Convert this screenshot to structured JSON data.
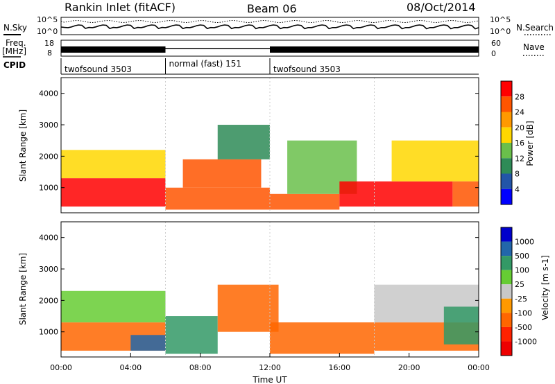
{
  "header": {
    "site": "Rankin Inlet (fitACF)",
    "beam": "Beam 06",
    "date": "08/Oct/2014"
  },
  "noise_panel": {
    "left_label": "N.Sky",
    "right_label": "N.Search",
    "left_ticks": [
      "10^5",
      "10^0"
    ],
    "right_ticks": [
      "10^5",
      "10^0"
    ]
  },
  "freq_panel": {
    "left_label_top": "Freq.",
    "left_label_unit": "[MHz]",
    "left_ticks": [
      "18",
      "8"
    ],
    "right_label": "Nave",
    "right_ticks": [
      "60",
      "0"
    ]
  },
  "cpid": {
    "label": "CPID",
    "segments": [
      {
        "label": "twofsound 3503",
        "start_hour": 0,
        "end_hour": 6
      },
      {
        "label": "normal (fast) 151",
        "start_hour": 6,
        "end_hour": 12
      },
      {
        "label": "twofsound 3503",
        "start_hour": 12,
        "end_hour": 24
      }
    ]
  },
  "colors": {
    "power": [
      "#0000ff",
      "#2255a8",
      "#2e8b57",
      "#6abf4b",
      "#ffd700",
      "#ff9900",
      "#ff5500",
      "#ff0000"
    ],
    "velocity": [
      "#0000cc",
      "#2266aa",
      "#339966",
      "#66cc33",
      "#c8c8c8",
      "#ff9900",
      "#ff6600",
      "#ff2200",
      "#ee0000"
    ]
  },
  "chart_data": [
    {
      "type": "heatmap",
      "name": "power",
      "ylabel": "Slant Range [km]",
      "xlim": [
        0,
        24
      ],
      "ylim": [
        200,
        4500
      ],
      "y_ticks": [
        1000,
        2000,
        3000,
        4000
      ],
      "colorbar": {
        "label": "Power [dB]",
        "ticks": [
          "4",
          "8",
          "12",
          "16",
          "20",
          "24",
          "28"
        ],
        "range": [
          0,
          32
        ]
      },
      "bands": [
        {
          "start_hour": 0.0,
          "end_hour": 6.0,
          "range_min": 400,
          "range_max": 1300,
          "value": 28
        },
        {
          "start_hour": 0.0,
          "end_hour": 6.0,
          "range_min": 1300,
          "range_max": 2200,
          "value": 16
        },
        {
          "start_hour": 6.0,
          "end_hour": 12.0,
          "range_min": 300,
          "range_max": 1000,
          "value": 26
        },
        {
          "start_hour": 7.0,
          "end_hour": 11.5,
          "range_min": 1000,
          "range_max": 1900,
          "value": 24
        },
        {
          "start_hour": 9.0,
          "end_hour": 12.0,
          "range_min": 1900,
          "range_max": 3000,
          "value": 10
        },
        {
          "start_hour": 12.0,
          "end_hour": 16.0,
          "range_min": 300,
          "range_max": 800,
          "value": 26
        },
        {
          "start_hour": 13.0,
          "end_hour": 17.0,
          "range_min": 800,
          "range_max": 2500,
          "value": 12
        },
        {
          "start_hour": 16.0,
          "end_hour": 22.5,
          "range_min": 400,
          "range_max": 1200,
          "value": 28
        },
        {
          "start_hour": 19.0,
          "end_hour": 24.0,
          "range_min": 1200,
          "range_max": 2500,
          "value": 18
        },
        {
          "start_hour": 22.5,
          "end_hour": 24.0,
          "range_min": 400,
          "range_max": 1200,
          "value": 24
        }
      ]
    },
    {
      "type": "heatmap",
      "name": "velocity",
      "ylabel": "Slant Range [km]",
      "xlabel": "Time UT",
      "xlim": [
        0,
        24
      ],
      "ylim": [
        200,
        4500
      ],
      "y_ticks": [
        1000,
        2000,
        3000,
        4000
      ],
      "x_ticks": [
        "00:00",
        "04:00",
        "08:00",
        "12:00",
        "16:00",
        "20:00",
        "00:00"
      ],
      "colorbar": {
        "label": "Velocity [m s-1]",
        "ticks": [
          "1000",
          "500",
          "100",
          "25",
          "-25",
          "-100",
          "-500",
          "-1000"
        ]
      },
      "bands": [
        {
          "start_hour": 0.0,
          "end_hour": 6.0,
          "range_min": 400,
          "range_max": 1300,
          "value": -200
        },
        {
          "start_hour": 0.0,
          "end_hour": 6.0,
          "range_min": 1300,
          "range_max": 2300,
          "value": 50
        },
        {
          "start_hour": 4.0,
          "end_hour": 6.0,
          "range_min": 400,
          "range_max": 900,
          "value": 600
        },
        {
          "start_hour": 6.0,
          "end_hour": 9.0,
          "range_min": 300,
          "range_max": 1500,
          "value": 150
        },
        {
          "start_hour": 9.0,
          "end_hour": 12.5,
          "range_min": 1000,
          "range_max": 2500,
          "value": -300
        },
        {
          "start_hour": 12.0,
          "end_hour": 18.0,
          "range_min": 300,
          "range_max": 1300,
          "value": -300
        },
        {
          "start_hour": 18.0,
          "end_hour": 24.0,
          "range_min": 400,
          "range_max": 1300,
          "value": -200
        },
        {
          "start_hour": 18.0,
          "end_hour": 24.0,
          "range_min": 1300,
          "range_max": 2500,
          "value": 0
        },
        {
          "start_hour": 22.0,
          "end_hour": 24.0,
          "range_min": 600,
          "range_max": 1800,
          "value": 150
        }
      ]
    }
  ]
}
